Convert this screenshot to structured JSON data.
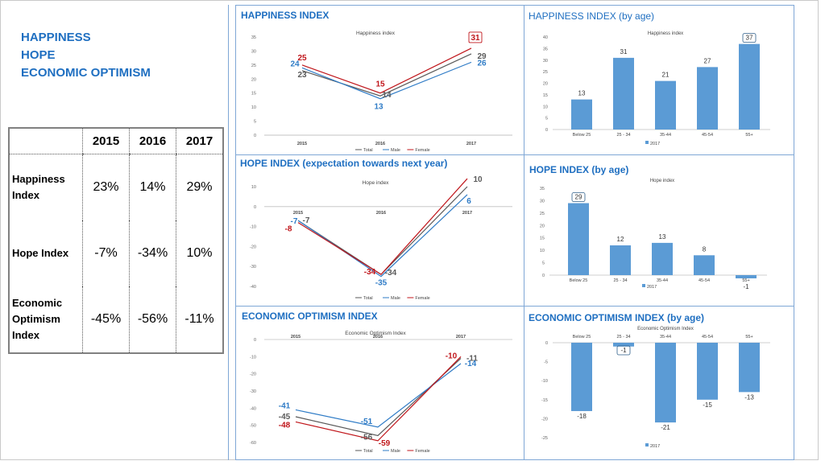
{
  "headings": [
    "HAPPINESS",
    "HOPE",
    "ECONOMIC OPTIMISM"
  ],
  "summary_table": {
    "years": [
      "2015",
      "2016",
      "2017"
    ],
    "rows": [
      {
        "label_lines": [
          "Happiness",
          "Index"
        ],
        "values": [
          "23%",
          "14%",
          "29%"
        ]
      },
      {
        "label_lines": [
          "Hope Index"
        ],
        "values": [
          "-7%",
          "-34%",
          "10%"
        ]
      },
      {
        "label_lines": [
          "Economic",
          "Optimism",
          "Index"
        ],
        "values": [
          "-45%",
          "-56%",
          "-11%"
        ]
      }
    ]
  },
  "colors": {
    "total": "#5a5a5a",
    "male": "#2e7bc6",
    "female": "#c0161b",
    "bar": "#5b9bd5",
    "heading": "#1f6fc1"
  },
  "chart_data": [
    {
      "type": "line",
      "title": "HAPPINESS INDEX",
      "inner_title": "Happiness index",
      "categories": [
        "2015",
        "2016",
        "2017"
      ],
      "ylim": [
        0,
        35
      ],
      "yticks": [
        0,
        5,
        10,
        15,
        20,
        25,
        30,
        35
      ],
      "series": [
        {
          "name": "Total",
          "values": [
            23,
            14,
            29
          ]
        },
        {
          "name": "Male",
          "values": [
            24,
            13,
            26
          ]
        },
        {
          "name": "Female",
          "values": [
            25,
            15,
            31
          ]
        }
      ],
      "legend": [
        "Total",
        "Male",
        "Female"
      ],
      "highlight": {
        "series": "Female",
        "index": 2
      }
    },
    {
      "type": "bar",
      "title": "HAPPINESS INDEX (by age)",
      "inner_title": "Happiness index",
      "categories": [
        "Below 25",
        "25 - 34",
        "35-44",
        "45-54",
        "55+"
      ],
      "values": [
        13,
        31,
        21,
        27,
        37
      ],
      "ylim": [
        0,
        40
      ],
      "yticks": [
        0,
        5,
        10,
        15,
        20,
        25,
        30,
        35,
        40
      ],
      "legend": [
        "2017"
      ],
      "highlight": [
        4
      ]
    },
    {
      "type": "line",
      "title": "HOPE INDEX (expectation towards next year)",
      "inner_title": "Hope index",
      "categories": [
        "2015",
        "2016",
        "2017"
      ],
      "ylim": [
        -40,
        10
      ],
      "yticks": [
        -40,
        -30,
        -20,
        -10,
        0,
        10
      ],
      "series": [
        {
          "name": "Total",
          "values": [
            -7,
            -34,
            10
          ]
        },
        {
          "name": "Male",
          "values": [
            -7,
            -35,
            6
          ]
        },
        {
          "name": "Female",
          "values": [
            -8,
            -34,
            14
          ]
        }
      ],
      "legend": [
        "Total",
        "Male",
        "Female"
      ]
    },
    {
      "type": "bar",
      "title": "HOPE INDEX  (by age)",
      "inner_title": "Hope index",
      "categories": [
        "Below 25",
        "25 - 34",
        "35-44",
        "45-54",
        "55+"
      ],
      "values": [
        29,
        12,
        13,
        8,
        -1
      ],
      "ylim": [
        0,
        35
      ],
      "yticks": [
        0,
        5,
        10,
        15,
        20,
        25,
        30,
        35
      ],
      "legend": [
        "2017"
      ],
      "highlight": [
        0
      ]
    },
    {
      "type": "line",
      "title": "ECONOMIC OPTIMISM INDEX",
      "inner_title": "Economic Optimism Index",
      "categories": [
        "2015",
        "2016",
        "2017"
      ],
      "ylim": [
        -60,
        0
      ],
      "yticks": [
        -60,
        -50,
        -40,
        -30,
        -20,
        -10,
        0
      ],
      "series": [
        {
          "name": "Total",
          "values": [
            -45,
            -56,
            -11
          ]
        },
        {
          "name": "Male",
          "values": [
            -41,
            -51,
            -14
          ]
        },
        {
          "name": "Female",
          "values": [
            -48,
            -59,
            -10
          ]
        }
      ],
      "legend": [
        "Total",
        "Male",
        "Female"
      ]
    },
    {
      "type": "bar",
      "title": "ECONOMIC OPTIMISM INDEX  (by age)",
      "inner_title": "Economic Optimism Index",
      "categories": [
        "Below 25",
        "25 - 34",
        "35-44",
        "45-54",
        "55+"
      ],
      "values": [
        -18,
        -1,
        -21,
        -15,
        -13
      ],
      "ylim": [
        -25,
        0
      ],
      "yticks": [
        -25,
        -20,
        -15,
        -10,
        -5,
        0
      ],
      "legend": [
        "2017"
      ],
      "highlight": [
        1
      ]
    }
  ]
}
